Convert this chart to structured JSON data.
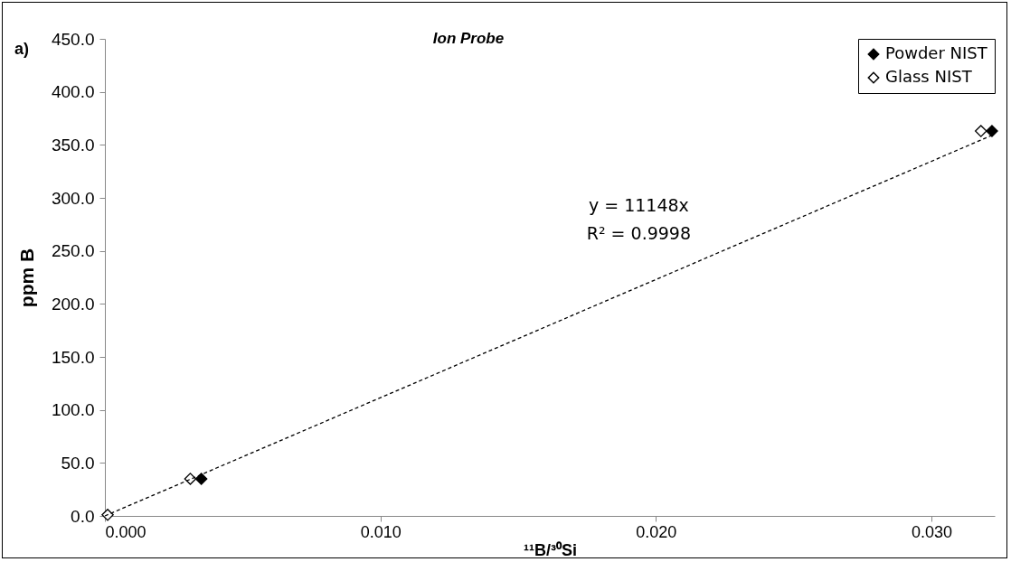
{
  "chart_data": {
    "type": "scatter",
    "title": "Ion Probe",
    "xlabel": "¹¹B/³⁰Si",
    "ylabel": "ppm B",
    "annotations": [
      "a)",
      "y = 11148x",
      "R² = 0.9998"
    ],
    "xlim": [
      0,
      0.0323
    ],
    "xticks": [
      {
        "value": 0,
        "label": "0.000"
      },
      {
        "value": 0.01,
        "label": "0.010"
      },
      {
        "value": 0.02,
        "label": "0.020"
      },
      {
        "value": 0.03,
        "label": "0.030"
      }
    ],
    "ylim": [
      0,
      450
    ],
    "yticks": [
      {
        "value": 0,
        "label": "0.0"
      },
      {
        "value": 50,
        "label": "50.0"
      },
      {
        "value": 100,
        "label": "100.0"
      },
      {
        "value": 150,
        "label": "150.0"
      },
      {
        "value": 200,
        "label": "200.0"
      },
      {
        "value": 250,
        "label": "250.0"
      },
      {
        "value": 300,
        "label": "300.0"
      },
      {
        "value": 350,
        "label": "350.0"
      },
      {
        "value": 400,
        "label": "400.0"
      },
      {
        "value": 450,
        "label": "450.0"
      }
    ],
    "grid": false,
    "legend": "top right",
    "marker": "diamond",
    "series": [
      {
        "name": "Powder NIST",
        "color": "#000000",
        "x": [
          0.0035,
          0.0322
        ],
        "values": [
          35,
          363
        ]
      },
      {
        "name": "Glass NIST",
        "color": "#ffffff",
        "x": [
          0.0001,
          0.0031,
          0.0318
        ],
        "values": [
          1,
          35,
          363
        ]
      },
      {
        "type": "line",
        "color": "#000000",
        "line_style": "dashed",
        "marker": "none",
        "x": [
          0,
          0.0322
        ],
        "values": [
          0,
          359
        ]
      }
    ]
  }
}
